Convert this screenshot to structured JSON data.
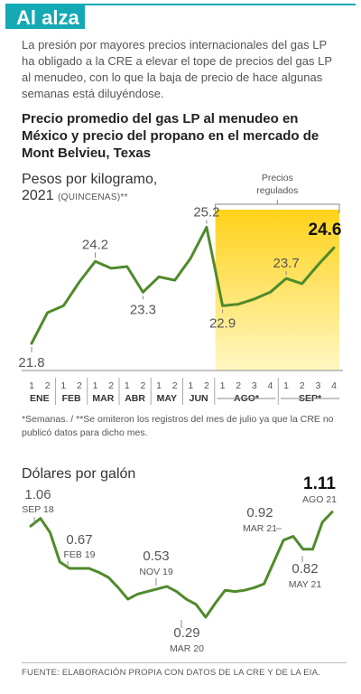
{
  "header": {
    "title": "Al alza",
    "intro": "La presión por mayores precios internacionales del gas LP ha obligado a la CRE a elevar el tope de precios del gas LP al menudeo, con lo que la baja de precio de hace algunas semanas está diluyéndose."
  },
  "colors": {
    "accent": "#13a9b5",
    "line": "#4f8a2b",
    "highlight_top": "#ffd21a",
    "highlight_bottom": "#fff7c2"
  },
  "chart_title": "Precio promedio del gas LP al menudeo en México y precio del propano en el mercado de Mont Belvieu, Texas",
  "chart_data": [
    {
      "type": "line",
      "title": "Pesos por kilogramo,",
      "subtitle_year": "2021",
      "subtitle_note": "(QUINCENAS)**",
      "highlight_label": "Precios regulados",
      "quincena_labels": [
        "1",
        "2",
        "1",
        "2",
        "1",
        "2",
        "1",
        "2",
        "1",
        "2",
        "1",
        "2",
        "1",
        "2",
        "3",
        "4",
        "1",
        "2",
        "3",
        "4"
      ],
      "months": [
        "ENE",
        "FEB",
        "MAR",
        "ABR",
        "MAY",
        "JUN",
        "AGO*",
        "SEP*"
      ],
      "values": [
        21.8,
        22.7,
        22.9,
        23.6,
        24.2,
        24.0,
        24.05,
        23.3,
        23.75,
        23.65,
        24.3,
        25.2,
        22.9,
        22.95,
        23.1,
        23.3,
        23.7,
        23.55,
        24.1,
        24.6
      ],
      "value_labels": [
        {
          "index": 0,
          "text": "21.8"
        },
        {
          "index": 4,
          "text": "24.2"
        },
        {
          "index": 7,
          "text": "23.3"
        },
        {
          "index": 11,
          "text": "25.2"
        },
        {
          "index": 12,
          "text": "22.9"
        },
        {
          "index": 16,
          "text": "23.7"
        },
        {
          "index": 19,
          "text": "24.6"
        }
      ]
    },
    {
      "type": "line",
      "title": "Dólares por galón",
      "values": [
        1.0,
        1.06,
        0.95,
        0.72,
        0.67,
        0.67,
        0.67,
        0.64,
        0.6,
        0.52,
        0.43,
        0.47,
        0.49,
        0.51,
        0.53,
        0.49,
        0.43,
        0.39,
        0.29,
        0.4,
        0.5,
        0.49,
        0.5,
        0.52,
        0.55,
        0.72,
        0.89,
        0.92,
        0.82,
        0.82,
        1.03,
        1.11
      ],
      "annotations": [
        {
          "index": 1,
          "value": "1.06",
          "date": "SEP 18"
        },
        {
          "index": 4,
          "value": "0.67",
          "date": "FEB 19"
        },
        {
          "index": 14,
          "value": "0.53",
          "date": "NOV 19"
        },
        {
          "index": 18,
          "value": "0.29",
          "date": "MAR 20"
        },
        {
          "index": 27,
          "value": "0.92",
          "date": "MAR 21"
        },
        {
          "index": 29,
          "value": "0.82",
          "date": "MAY 21"
        },
        {
          "index": 31,
          "value": "1.11",
          "date": "AGO 21"
        }
      ]
    }
  ],
  "footnote": "*Semanas. / **Se omiteron los registros del mes de julio ya que la CRE no publicó datos para dicho mes.",
  "source": "FUENTE: ELABORACIÓN PROPIA CON DATOS DE LA CRE Y DE LA EIA."
}
